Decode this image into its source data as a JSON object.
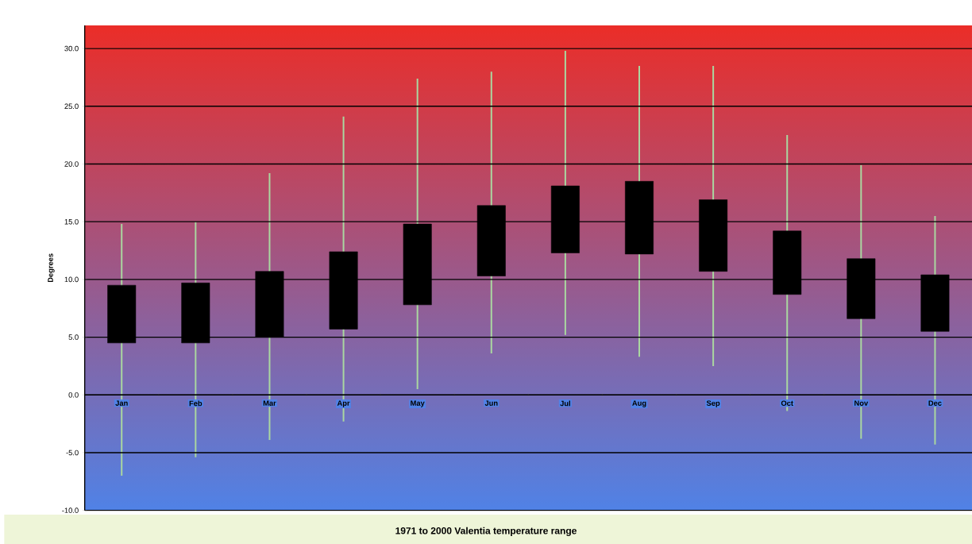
{
  "chart_data": {
    "type": "candlestick",
    "title": "1971 to 2000 Valentia temperature range",
    "ylabel": "Degrees",
    "categories": [
      "Jan",
      "Feb",
      "Mar",
      "Apr",
      "May",
      "Jun",
      "Jul",
      "Aug",
      "Sep",
      "Oct",
      "Nov",
      "Dec"
    ],
    "ohlc": [
      [
        4.5,
        14.8,
        -7.0,
        9.5
      ],
      [
        4.5,
        15.0,
        -5.4,
        9.7
      ],
      [
        5.0,
        19.2,
        -3.9,
        10.7
      ],
      [
        5.7,
        24.1,
        -2.3,
        12.4
      ],
      [
        7.8,
        27.4,
        0.5,
        14.8
      ],
      [
        10.3,
        28.0,
        3.6,
        16.4
      ],
      [
        12.3,
        29.8,
        5.2,
        18.1
      ],
      [
        12.2,
        28.5,
        3.3,
        18.5
      ],
      [
        10.7,
        28.5,
        2.5,
        16.9
      ],
      [
        8.7,
        22.5,
        -1.4,
        14.2
      ],
      [
        6.6,
        19.9,
        -3.8,
        11.8
      ],
      [
        5.5,
        15.5,
        -4.3,
        10.4
      ]
    ],
    "color": "#000000",
    "ylim": [
      -10,
      32
    ],
    "yticks": [
      {
        "value": -10,
        "label": "-10.0"
      },
      {
        "value": -5,
        "label": "-5.0"
      },
      {
        "value": 0,
        "label": "0.0"
      },
      {
        "value": 5,
        "label": "5.0"
      },
      {
        "value": 10,
        "label": "10.0"
      },
      {
        "value": 15,
        "label": "15.0"
      },
      {
        "value": 20,
        "label": "20.0"
      },
      {
        "value": 25,
        "label": "25.0"
      },
      {
        "value": 30,
        "label": "30.0"
      }
    ],
    "grid": "y"
  }
}
